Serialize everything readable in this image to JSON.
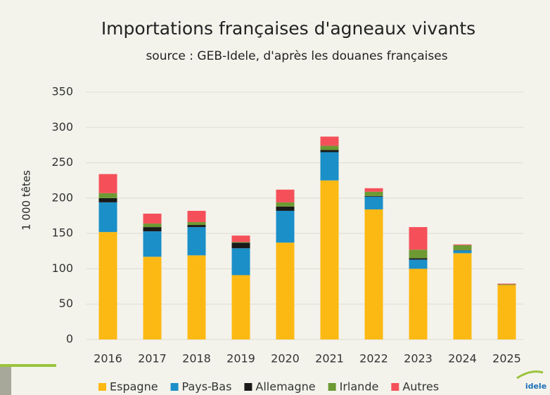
{
  "chart_data": {
    "type": "bar",
    "stacked": true,
    "title": "Importations françaises d'agneaux vivants",
    "subtitle": "source : GEB-Idele, d'après les douanes françaises",
    "y_label": "1 000 têtes",
    "logo": "idele",
    "categories": [
      "2016",
      "2017",
      "2018",
      "2019",
      "2020",
      "2021",
      "2022",
      "2023",
      "2024",
      "2025"
    ],
    "series": [
      {
        "name": "Espagne",
        "color": "#fdb913",
        "values": [
          152,
          117,
          119,
          91,
          137,
          225,
          184,
          100,
          122,
          77
        ]
      },
      {
        "name": "Pays-Bas",
        "color": "#1b8fc8",
        "values": [
          42,
          36,
          40,
          38,
          45,
          40,
          18,
          13,
          4,
          0
        ]
      },
      {
        "name": "Allemagne",
        "color": "#1a1a1a",
        "values": [
          6,
          6,
          3,
          8,
          6,
          3,
          1,
          2,
          0.5,
          0
        ]
      },
      {
        "name": "Irlande",
        "color": "#6d9a33",
        "values": [
          7,
          5,
          4,
          1,
          6,
          6,
          6,
          12,
          7,
          1
        ]
      },
      {
        "name": "Autres",
        "color": "#f5505a",
        "values": [
          27,
          14,
          16,
          9,
          18,
          13,
          5,
          32,
          1,
          1
        ]
      }
    ],
    "ylim": [
      0,
      350
    ],
    "yticks": [
      0,
      50,
      100,
      150,
      200,
      250,
      300,
      350
    ],
    "grid": true
  }
}
